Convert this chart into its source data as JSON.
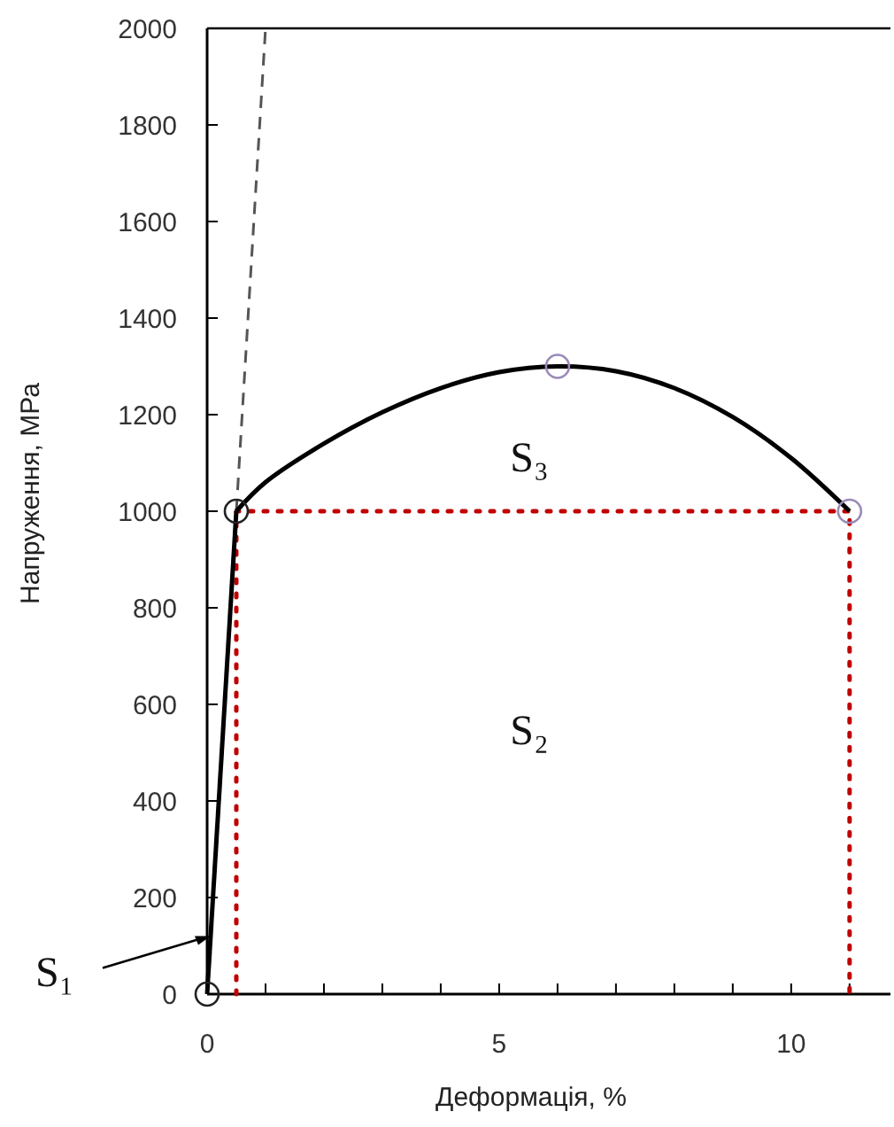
{
  "chart_data": {
    "type": "line",
    "xlabel": "Деформація, %",
    "ylabel": "Напруження, МРа",
    "xlim": [
      0,
      11.7
    ],
    "ylim": [
      0,
      2000
    ],
    "xticks": [
      0,
      {
        "value": 1,
        "label": null
      },
      {
        "value": 2,
        "label": null
      },
      {
        "value": 3,
        "label": null
      },
      {
        "value": 4,
        "label": null
      },
      5,
      {
        "value": 6,
        "label": null
      },
      {
        "value": 7,
        "label": null
      },
      {
        "value": 8,
        "label": null
      },
      {
        "value": 9,
        "label": null
      },
      10,
      {
        "value": 11,
        "label": null
      }
    ],
    "yticks": [
      0,
      200,
      400,
      600,
      800,
      1000,
      1200,
      1400,
      1600,
      1800,
      2000
    ],
    "series": [
      {
        "color": "#c00000",
        "line_style": "dotted",
        "x": [
          0.5,
          0.5,
          11,
          11
        ],
        "values": [
          0,
          1000,
          1000,
          0
        ]
      },
      {
        "color": "#555555",
        "line_style": "dashed",
        "x": [
          0.5,
          1
        ],
        "values": [
          1000,
          2000
        ]
      },
      {
        "color": "#000000",
        "line_style": "solid",
        "x": [
          0,
          0.5
        ],
        "values": [
          0,
          1000
        ]
      },
      {
        "color": "#000000",
        "line_style": "solid",
        "x": [
          0.5,
          1,
          2,
          3,
          4,
          5,
          6,
          7,
          8,
          9,
          10,
          11
        ],
        "values": [
          1000,
          1060,
          1140,
          1205,
          1255,
          1288,
          1300,
          1290,
          1255,
          1195,
          1110,
          1000
        ]
      },
      {
        "type": "scatter",
        "color": "#222222",
        "marker": "circle",
        "x": [
          0,
          0.5
        ],
        "values": [
          0,
          1000
        ]
      },
      {
        "type": "scatter",
        "color": "#9a8ab8",
        "marker": "circle",
        "x": [
          6,
          11
        ],
        "values": [
          1300,
          1000
        ]
      }
    ],
    "annotations": [
      {
        "text": "S₁",
        "x": 0.06,
        "y": 120
      },
      "S₂",
      "S₃"
    ]
  }
}
